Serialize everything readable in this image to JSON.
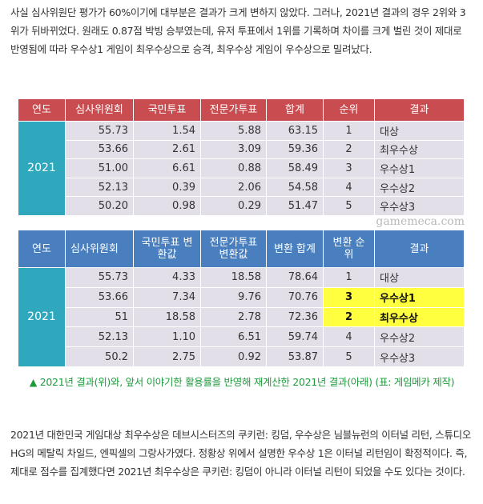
{
  "intro": "사실 심사위원단 평가가 60%이기에 대부분은 결과가 크게 변하지 않았다. 그러나, 2021년 결과의 경우 2위와 3위가 뒤바뀌었다. 원래도 0.87점 박빙 승부였는데, 유저 투표에서 1위를 기록하며 차이를 크게 벌린 것이 제대로 반영됨에 따라 우수상1 게임이 최우수상으로 승격, 최우수상 게임이 우수상으로 밀려났다.",
  "table1": {
    "headers": [
      "연도",
      "심사위원회",
      "국민투표",
      "전문가투표",
      "합계",
      "순위",
      "결과"
    ],
    "year": "2021",
    "rows": [
      [
        "55.73",
        "1.54",
        "5.88",
        "63.15",
        "1",
        "대상"
      ],
      [
        "53.66",
        "2.61",
        "3.09",
        "59.36",
        "2",
        "최우수상"
      ],
      [
        "51.00",
        "6.61",
        "0.88",
        "58.49",
        "3",
        "우수상1"
      ],
      [
        "52.13",
        "0.39",
        "2.06",
        "54.58",
        "4",
        "우수상2"
      ],
      [
        "50.20",
        "0.98",
        "0.29",
        "51.47",
        "5",
        "우수상3"
      ]
    ]
  },
  "table2": {
    "headers": [
      "연도",
      "심사위원회",
      "국민투표 변환값",
      "전문가투표 변환값",
      "변환 합계",
      "변환 순위",
      "결과"
    ],
    "year": "2021",
    "rows": [
      [
        "55.73",
        "4.33",
        "18.58",
        "78.64",
        "1",
        "대상"
      ],
      [
        "53.66",
        "7.34",
        "9.76",
        "70.76",
        "3",
        "우수상1"
      ],
      [
        "51",
        "18.58",
        "2.78",
        "72.36",
        "2",
        "최우수상"
      ],
      [
        "52.13",
        "1.10",
        "6.51",
        "59.74",
        "4",
        "우수상2"
      ],
      [
        "50.2",
        "2.75",
        "0.92",
        "53.87",
        "5",
        "우수상3"
      ]
    ],
    "highlight_color": "#ffff40"
  },
  "watermark": "gamemeca.com",
  "caption": "▲ 2021년 결과(위)와, 앞서 이야기한 활용률을 반영해 재계산한 2021년 결과(아래) (표: 게임메카 제작)",
  "body": "2021년 대한민국 게임대상 최우수상은 데브시스터즈의 쿠키런: 킹덤, 우수상은 님블뉴런의 이터널 리턴, 스튜디오HG의 메탈릭 차일드, 엔픽셀의 그랑사가였다. 정황상 위에서 설명한 우수상 1은 이터널 리턴임이 확정적이다. 즉, 제대로 점수를 집계했다면 2021년 최우수상은 쿠키런: 킹덤이 아니라 이터널 리턴이 되었을 수도 있다는 것이다."
}
